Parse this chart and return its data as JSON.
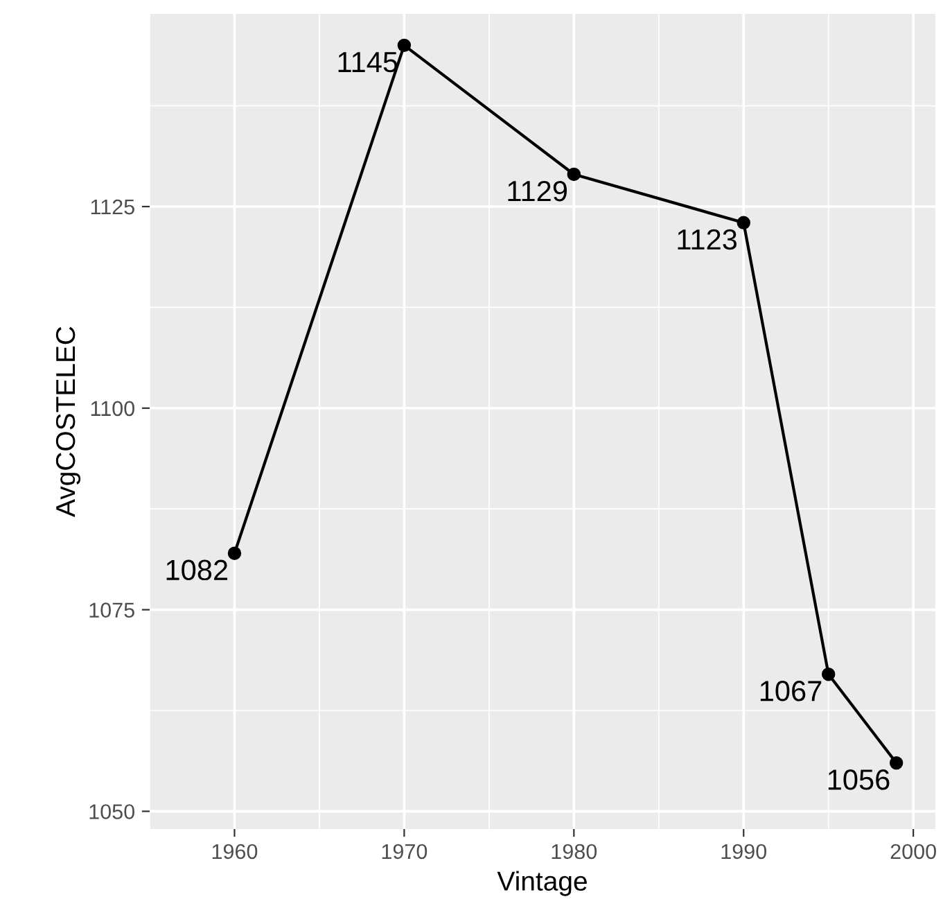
{
  "chart_data": {
    "type": "line",
    "xlabel": "Vintage",
    "ylabel": "AvgCOSTELEC",
    "x": [
      1960,
      1970,
      1980,
      1990,
      1995,
      1999
    ],
    "series": [
      {
        "color": "#000000",
        "values": [
          1082,
          1145,
          1129,
          1123,
          1067,
          1056
        ]
      }
    ],
    "data_labels": true,
    "marker": "circle",
    "line_style": "solid",
    "grid": true,
    "legend": false,
    "xlim": [
      1955,
      2001.3
    ],
    "xticks": [
      1960,
      1970,
      1980,
      1990,
      2000
    ],
    "ylim": [
      1047.8,
      1148.9
    ],
    "yticks": [
      1050,
      1075,
      1100,
      1125
    ]
  }
}
